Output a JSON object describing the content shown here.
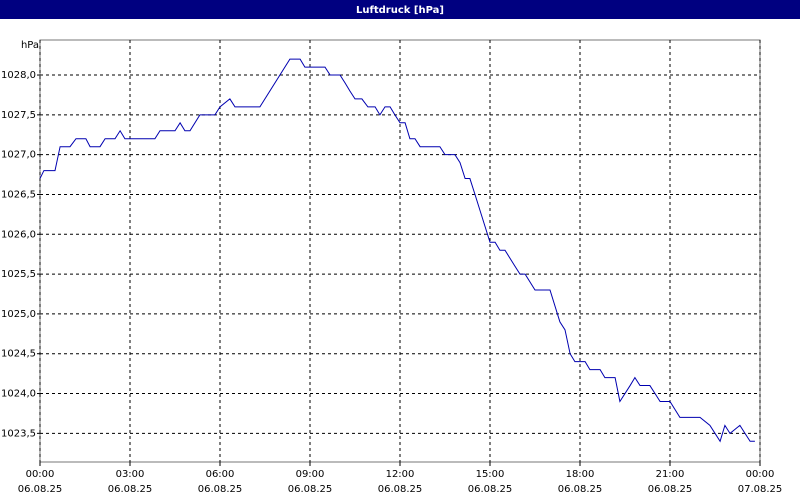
{
  "chart_data": {
    "type": "line",
    "title": "Luftdruck [hPa]",
    "y_label": "hPa",
    "x": [
      0,
      0.13,
      0.5,
      0.67,
      1.0,
      1.2,
      1.53,
      1.67,
      2.0,
      2.17,
      2.5,
      2.67,
      2.83,
      3.83,
      4.0,
      4.5,
      4.67,
      4.83,
      5.0,
      5.33,
      5.83,
      6.0,
      6.33,
      6.5,
      7.33,
      8.33,
      8.67,
      8.83,
      9.5,
      9.67,
      10.0,
      10.17,
      10.33,
      10.5,
      10.73,
      10.93,
      11.17,
      11.33,
      11.5,
      11.67,
      11.83,
      12.0,
      12.17,
      12.33,
      12.5,
      12.67,
      13.33,
      13.5,
      13.83,
      14.0,
      14.17,
      14.33,
      14.5,
      15.0,
      15.17,
      15.33,
      15.5,
      15.83,
      16.0,
      16.17,
      16.5,
      17.0,
      17.33,
      17.5,
      17.67,
      17.83,
      18.17,
      18.33,
      18.67,
      18.83,
      19.17,
      19.33,
      19.67,
      19.83,
      20.0,
      20.33,
      20.5,
      20.67,
      21.0,
      21.33,
      22.0,
      22.33,
      22.67,
      22.83,
      23.0,
      23.33,
      23.5,
      23.67,
      23.83
    ],
    "series": [
      {
        "color": "#0000b0",
        "values": [
          1026.7,
          1026.8,
          1026.8,
          1027.1,
          1027.1,
          1027.2,
          1027.2,
          1027.1,
          1027.1,
          1027.2,
          1027.2,
          1027.3,
          1027.2,
          1027.2,
          1027.3,
          1027.3,
          1027.4,
          1027.3,
          1027.3,
          1027.5,
          1027.5,
          1027.6,
          1027.7,
          1027.6,
          1027.6,
          1028.2,
          1028.2,
          1028.1,
          1028.1,
          1028.0,
          1028.0,
          1027.9,
          1027.8,
          1027.7,
          1027.7,
          1027.6,
          1027.6,
          1027.5,
          1027.6,
          1027.6,
          1027.5,
          1027.4,
          1027.4,
          1027.2,
          1027.2,
          1027.1,
          1027.1,
          1027.0,
          1027.0,
          1026.9,
          1026.7,
          1026.7,
          1026.5,
          1025.9,
          1025.9,
          1025.8,
          1025.8,
          1025.6,
          1025.5,
          1025.5,
          1025.3,
          1025.3,
          1024.9,
          1024.8,
          1024.5,
          1024.4,
          1024.4,
          1024.3,
          1024.3,
          1024.2,
          1024.2,
          1023.9,
          1024.1,
          1024.2,
          1024.1,
          1024.1,
          1024.0,
          1023.9,
          1023.9,
          1023.7,
          1023.7,
          1023.6,
          1023.4,
          1023.6,
          1023.5,
          1023.6,
          1023.5,
          1023.4,
          1023.4
        ]
      }
    ],
    "xlim": [
      0,
      24
    ],
    "xticks": [
      {
        "value": 0,
        "label": "00:00"
      },
      {
        "value": 3,
        "label": "03:00"
      },
      {
        "value": 6,
        "label": "06:00"
      },
      {
        "value": 9,
        "label": "09:00"
      },
      {
        "value": 12,
        "label": "12:00"
      },
      {
        "value": 15,
        "label": "15:00"
      },
      {
        "value": 18,
        "label": "18:00"
      },
      {
        "value": 21,
        "label": "21:00"
      },
      {
        "value": 24,
        "label": "00:00"
      }
    ],
    "xtick_dates": [
      "06.08.25",
      "06.08.25",
      "06.08.25",
      "06.08.25",
      "06.08.25",
      "06.08.25",
      "06.08.25",
      "06.08.25",
      "07.08.25"
    ],
    "ylim": [
      1023.14,
      1028.44
    ],
    "yticks": [
      {
        "value": 1023.5,
        "label": "1023,5"
      },
      {
        "value": 1024.0,
        "label": "1024,0"
      },
      {
        "value": 1024.5,
        "label": "1024,5"
      },
      {
        "value": 1025.0,
        "label": "1025,0"
      },
      {
        "value": 1025.5,
        "label": "1025,5"
      },
      {
        "value": 1026.0,
        "label": "1026,0"
      },
      {
        "value": 1026.5,
        "label": "1026,5"
      },
      {
        "value": 1027.0,
        "label": "1027,0"
      },
      {
        "value": 1027.5,
        "label": "1027,5"
      },
      {
        "value": 1028.0,
        "label": "1028,0"
      }
    ],
    "grid": true
  }
}
